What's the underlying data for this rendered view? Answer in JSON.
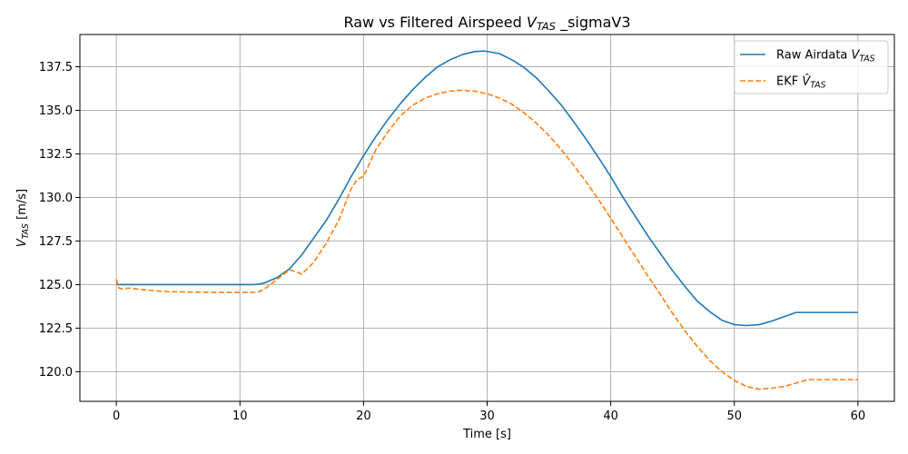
{
  "chart_data": {
    "type": "line",
    "title": {
      "prefix": "Raw vs Filtered Airspeed ",
      "var": "V",
      "sub": "TAS",
      "suffix": " _sigmaV3"
    },
    "xlabel": "Time [s]",
    "ylabel": {
      "var": "V",
      "sub": "TAS",
      "suffix": " [m/s]"
    },
    "xlim": [
      -2.95,
      62.95
    ],
    "ylim": [
      118.3,
      139.35
    ],
    "xticks": [
      0,
      10,
      20,
      30,
      40,
      50,
      60
    ],
    "xtick_labels": [
      "0",
      "10",
      "20",
      "30",
      "40",
      "50",
      "60"
    ],
    "yticks": [
      120.0,
      122.5,
      125.0,
      127.5,
      130.0,
      132.5,
      135.0,
      137.5
    ],
    "ytick_labels": [
      "120.0",
      "122.5",
      "125.0",
      "127.5",
      "130.0",
      "132.5",
      "135.0",
      "137.5"
    ],
    "grid": true,
    "legend_position": "top-right",
    "series": [
      {
        "name": "Raw Airdata V_TAS",
        "legend": {
          "prefix": "Raw Airdata ",
          "var": "V",
          "sub": "TAS",
          "hat": false
        },
        "color": "#1f77b4",
        "style": "solid",
        "x": [
          0,
          2,
          4,
          6,
          8,
          10,
          11,
          11.5,
          12,
          13,
          14,
          15,
          16,
          17,
          18,
          19,
          20,
          21,
          22,
          23,
          24,
          25,
          26,
          27,
          28,
          29,
          29.7,
          30,
          31,
          32,
          33,
          34,
          35,
          36,
          37,
          38,
          39,
          40,
          41,
          42,
          43,
          44,
          45,
          46,
          47,
          48,
          49,
          50,
          51,
          52,
          53,
          54,
          55,
          56,
          57,
          58,
          59,
          60
        ],
        "y": [
          125.0,
          125.0,
          125.0,
          125.0,
          125.0,
          125.0,
          125.0,
          125.02,
          125.1,
          125.4,
          125.9,
          126.7,
          127.7,
          128.7,
          129.9,
          131.2,
          132.4,
          133.5,
          134.5,
          135.4,
          136.2,
          136.9,
          137.5,
          137.9,
          138.2,
          138.37,
          138.4,
          138.38,
          138.25,
          137.9,
          137.45,
          136.85,
          136.1,
          135.3,
          134.35,
          133.35,
          132.3,
          131.2,
          130.0,
          128.9,
          127.8,
          126.8,
          125.8,
          124.9,
          124.05,
          123.45,
          122.95,
          122.7,
          122.65,
          122.7,
          122.9,
          123.15,
          123.4,
          123.4,
          123.4,
          123.4,
          123.4,
          123.4
        ]
      },
      {
        "name": "EKF ̂V_TAS",
        "legend": {
          "prefix": "EKF ",
          "var": "V",
          "sub": "TAS",
          "hat": true
        },
        "color": "#ff7f0e",
        "style": "dashed",
        "x": [
          0,
          0.2,
          0.5,
          1,
          2,
          3,
          4,
          6,
          8,
          10,
          11,
          11.5,
          12,
          13,
          14,
          14.5,
          15,
          16,
          17,
          18,
          19,
          19.5,
          20,
          21,
          22,
          23,
          24,
          25,
          26,
          27,
          28,
          29,
          30,
          31,
          32,
          33,
          34,
          35,
          36,
          37,
          38,
          39,
          40,
          41,
          42,
          43,
          44,
          45,
          46,
          47,
          48,
          49,
          50,
          51,
          52,
          53,
          54,
          55,
          56,
          57,
          58,
          59,
          60
        ],
        "y": [
          125.3,
          124.8,
          124.75,
          124.8,
          124.72,
          124.65,
          124.6,
          124.57,
          124.55,
          124.55,
          124.55,
          124.58,
          124.75,
          125.3,
          125.85,
          125.75,
          125.6,
          126.3,
          127.4,
          128.7,
          130.5,
          131.05,
          131.2,
          132.75,
          133.8,
          134.7,
          135.3,
          135.7,
          135.95,
          136.1,
          136.15,
          136.1,
          135.95,
          135.7,
          135.35,
          134.85,
          134.25,
          133.55,
          132.75,
          131.85,
          130.9,
          129.9,
          128.8,
          127.7,
          126.6,
          125.5,
          124.45,
          123.35,
          122.35,
          121.45,
          120.65,
          120.0,
          119.5,
          119.15,
          119.0,
          119.05,
          119.15,
          119.35,
          119.55,
          119.55,
          119.55,
          119.55,
          119.55
        ]
      }
    ]
  }
}
